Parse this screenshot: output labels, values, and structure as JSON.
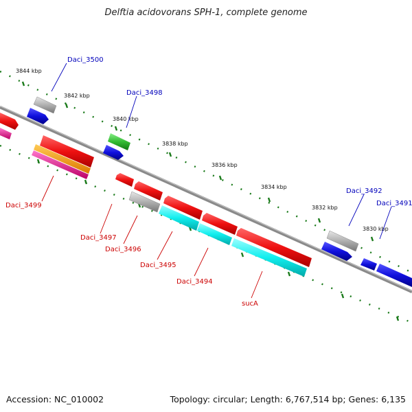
{
  "title": "Delftia acidovorans SPH-1, complete genome",
  "footer": {
    "accession": "Accession: NC_010002",
    "summary": "Topology: circular; Length: 6,767,514 bp; Genes: 6,135"
  },
  "colors": {
    "backbone": "#7a7a7a",
    "tick": "#1a7a1a",
    "label_forward": "#0000bb",
    "label_reverse": "#cc0000",
    "blue": "#1010dd",
    "gray": "#b0b0b0",
    "green": "#33bb33",
    "red": "#ee1111",
    "cyan": "#11eeee",
    "orange": "#ff9900",
    "magenta": "#ee2299"
  },
  "ticks": [
    "3844 kbp",
    "3842 kbp",
    "3840 kbp",
    "3838 kbp",
    "3836 kbp",
    "3834 kbp",
    "3832 kbp",
    "3830 kbp"
  ],
  "gene_labels": [
    {
      "id": "Daci_3500",
      "text": "Daci_3500",
      "strand": "forward"
    },
    {
      "id": "Daci_3498",
      "text": "Daci_3498",
      "strand": "forward"
    },
    {
      "id": "Daci_3492",
      "text": "Daci_3492",
      "strand": "forward"
    },
    {
      "id": "Daci_3491",
      "text": "Daci_3491",
      "strand": "forward"
    },
    {
      "id": "Daci_3499",
      "text": "Daci_3499",
      "strand": "reverse"
    },
    {
      "id": "Daci_3497",
      "text": "Daci_3497",
      "strand": "reverse"
    },
    {
      "id": "Daci_3496",
      "text": "Daci_3496",
      "strand": "reverse"
    },
    {
      "id": "Daci_3495",
      "text": "Daci_3495",
      "strand": "reverse"
    },
    {
      "id": "Daci_3494",
      "text": "Daci_3494",
      "strand": "reverse"
    },
    {
      "id": "sucA",
      "text": "sucA",
      "strand": "reverse"
    }
  ]
}
